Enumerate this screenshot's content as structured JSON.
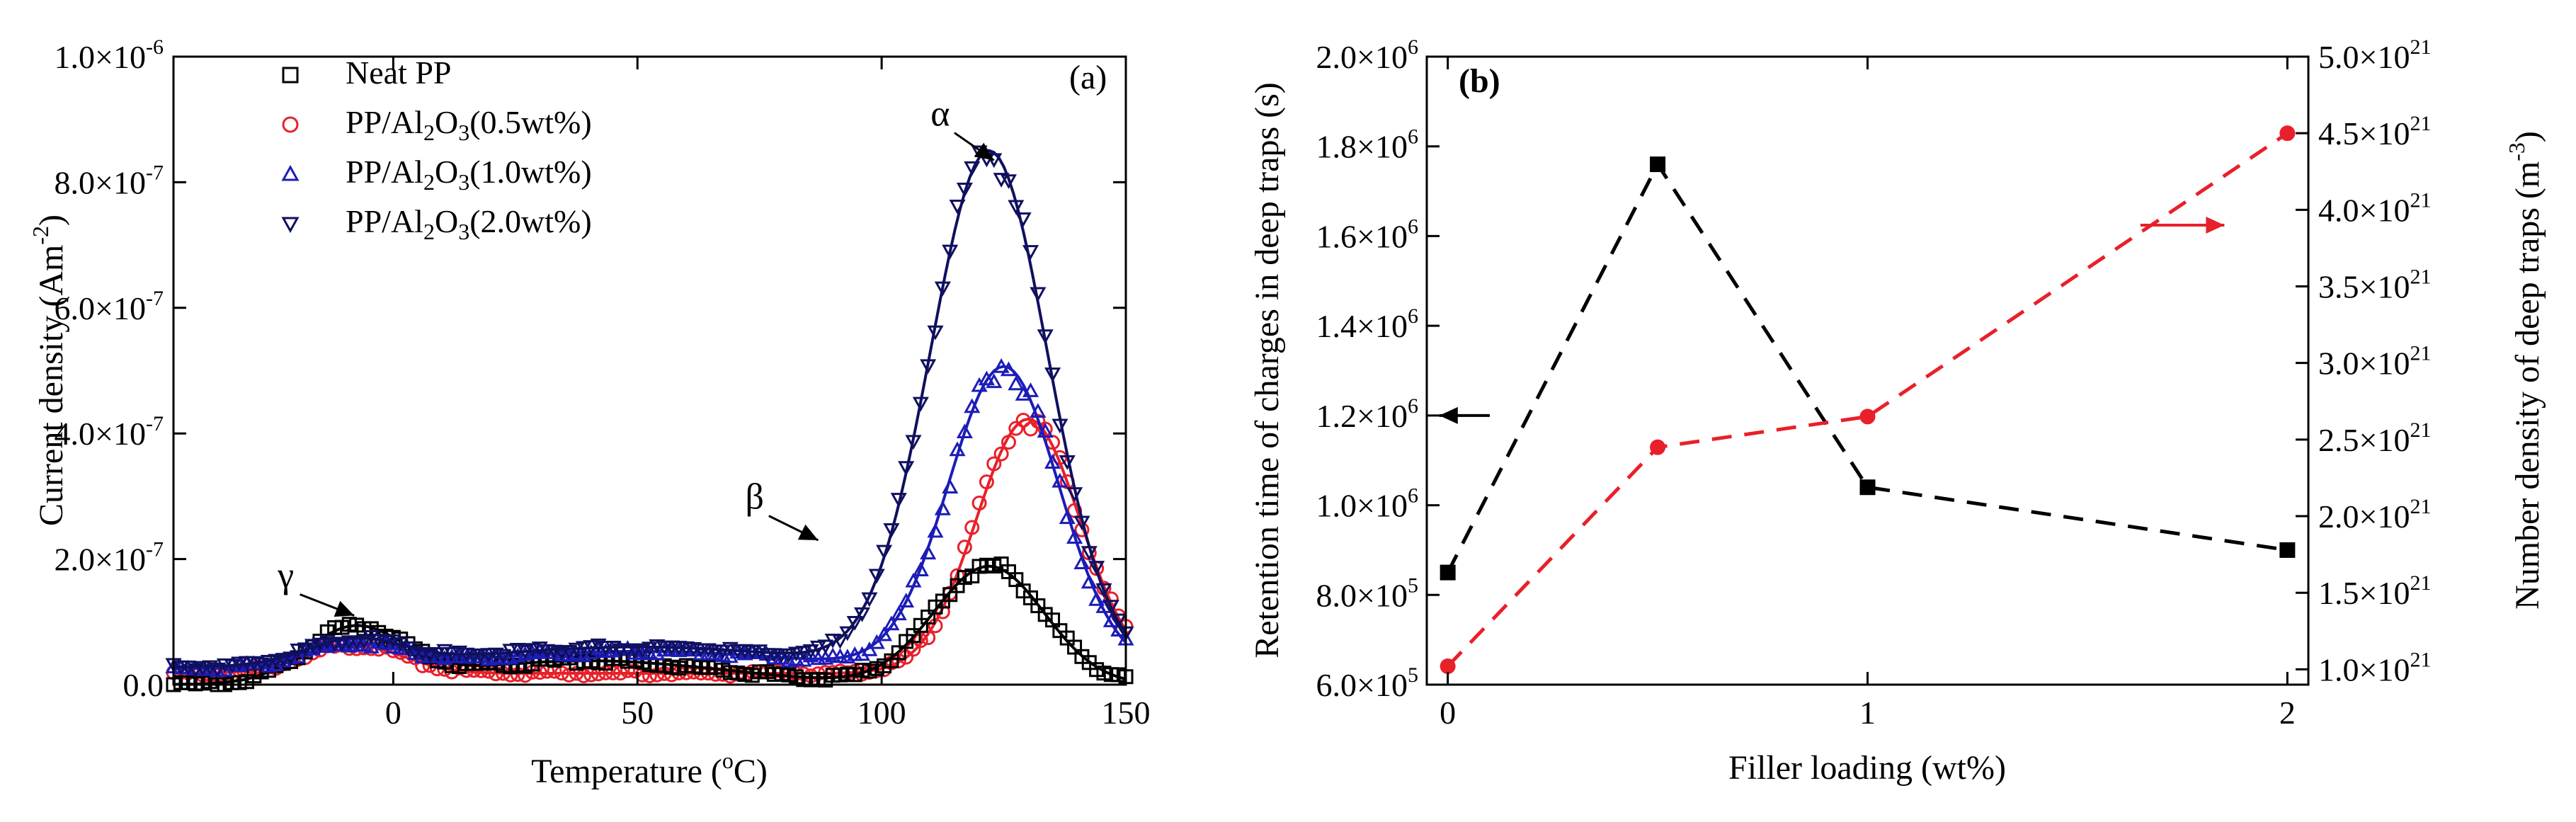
{
  "chart_data": [
    {
      "panel": "(a)",
      "type": "scatter",
      "xlabel": {
        "main": "Temperature (",
        "sup": "o",
        "tail": "C)"
      },
      "ylabel": {
        "main": "Current density (Am",
        "sup": "-2",
        "tail": ")"
      },
      "xlim": [
        -45,
        150
      ],
      "ylim": [
        0,
        1e-06
      ],
      "x_ticks": [
        {
          "v": 0,
          "t": "0"
        },
        {
          "v": 50,
          "t": "50"
        },
        {
          "v": 100,
          "t": "100"
        },
        {
          "v": 150,
          "t": "150"
        }
      ],
      "y_ticks": [
        {
          "v": 0,
          "m": "0.0",
          "e": ""
        },
        {
          "v": 2e-07,
          "m": "2.0×10",
          "e": "-7"
        },
        {
          "v": 4e-07,
          "m": "4.0×10",
          "e": "-7"
        },
        {
          "v": 6e-07,
          "m": "6.0×10",
          "e": "-7"
        },
        {
          "v": 8e-07,
          "m": "8.0×10",
          "e": "-7"
        },
        {
          "v": 1e-06,
          "m": "1.0×10",
          "e": "-6"
        }
      ],
      "series": [
        {
          "name": "Neat PP",
          "label_main": "Neat PP",
          "label_sub": "",
          "label_tail": "",
          "marker": "square",
          "color": "#000000",
          "peaks": [
            {
              "c": -8,
              "w": 14,
              "a": 8.5e-08
            },
            {
              "c": 40,
              "w": 40,
              "a": 3.8e-08
            },
            {
              "c": 122,
              "w": 16,
              "a": 1.88e-07
            }
          ],
          "baseline": 0
        },
        {
          "name": "PP/Al2O3(0.5wt%)",
          "label_main": "PP/Al",
          "label_sub": "2",
          "label_tail": "O",
          "label_sub2": "3",
          "label_end": "(0.5wt%)",
          "marker": "circle",
          "color": "#e8202a",
          "peaks": [
            {
              "c": -8,
              "w": 14,
              "a": 4.5e-08
            },
            {
              "c": 130,
              "w": 15,
              "a": 4.05e-07
            }
          ],
          "baseline": 1.8e-08
        },
        {
          "name": "PP/Al2O3(1.0wt%)",
          "label_main": "PP/Al",
          "label_sub": "2",
          "label_tail": "O",
          "label_sub2": "3",
          "label_end": "(1.0wt%)",
          "marker": "triangle-up",
          "color": "#1c1cb8",
          "peaks": [
            {
              "c": -8,
              "w": 14,
              "a": 3.5e-08
            },
            {
              "c": 50,
              "w": 45,
              "a": 2.8e-08
            },
            {
              "c": 125,
              "w": 16,
              "a": 4.8e-07
            }
          ],
          "baseline": 2.5e-08
        },
        {
          "name": "PP/Al2O3(2.0wt%)",
          "label_main": "PP/Al",
          "label_sub": "2",
          "label_tail": "O",
          "label_sub2": "3",
          "label_end": "(2.0wt%)",
          "marker": "triangle-down",
          "color": "#101060",
          "peaks": [
            {
              "c": -8,
              "w": 14,
              "a": 4e-08
            },
            {
              "c": 50,
              "w": 45,
              "a": 3.2e-08
            },
            {
              "c": 122,
              "w": 17,
              "a": 8.2e-07
            }
          ],
          "baseline": 2.8e-08
        }
      ],
      "annotations": [
        {
          "text": "α",
          "x": 112,
          "y": 8.9e-07,
          "arrow_to": [
            123,
            8.35e-07
          ]
        },
        {
          "text": "β",
          "x": 74,
          "y": 2.8e-07,
          "arrow_to": [
            87,
            2.3e-07
          ]
        },
        {
          "text": "γ",
          "x": -22,
          "y": 1.55e-07,
          "arrow_to": [
            -8,
            1.1e-07
          ]
        }
      ]
    },
    {
      "panel": "(b)",
      "type": "line",
      "xlabel": "Filler loading (wt%)",
      "ylabel_left": "Retention time of charges in deep traps (s)",
      "ylabel_right": {
        "main": "Number density of deep traps (m",
        "sup": "-3",
        "tail": ")"
      },
      "xlim": [
        -0.05,
        2.05
      ],
      "ylim_left": [
        600000.0,
        2000000.0
      ],
      "ylim_right": [
        9e+20,
        5e+21
      ],
      "x": [
        0,
        0.5,
        1,
        2
      ],
      "x_ticks": [
        {
          "v": 0,
          "t": "0"
        },
        {
          "v": 1,
          "t": "1"
        },
        {
          "v": 2,
          "t": "2"
        }
      ],
      "y_left_ticks": [
        {
          "v": 600000.0,
          "m": "6.0×10",
          "e": "5"
        },
        {
          "v": 800000.0,
          "m": "8.0×10",
          "e": "5"
        },
        {
          "v": 1000000.0,
          "m": "1.0×10",
          "e": "6"
        },
        {
          "v": 1200000.0,
          "m": "1.2×10",
          "e": "6"
        },
        {
          "v": 1400000.0,
          "m": "1.4×10",
          "e": "6"
        },
        {
          "v": 1600000.0,
          "m": "1.6×10",
          "e": "6"
        },
        {
          "v": 1800000.0,
          "m": "1.8×10",
          "e": "6"
        },
        {
          "v": 2000000.0,
          "m": "2.0×10",
          "e": "6"
        }
      ],
      "y_right_ticks": [
        {
          "v": 1e+21,
          "m": "1.0×10",
          "e": "21"
        },
        {
          "v": 1.5e+21,
          "m": "1.5×10",
          "e": "21"
        },
        {
          "v": 2e+21,
          "m": "2.0×10",
          "e": "21"
        },
        {
          "v": 2.5e+21,
          "m": "2.5×10",
          "e": "21"
        },
        {
          "v": 3e+21,
          "m": "3.0×10",
          "e": "21"
        },
        {
          "v": 3.5e+21,
          "m": "3.5×10",
          "e": "21"
        },
        {
          "v": 4e+21,
          "m": "4.0×10",
          "e": "21"
        },
        {
          "v": 4.5e+21,
          "m": "4.5×10",
          "e": "21"
        },
        {
          "v": 5e+21,
          "m": "5.0×10",
          "e": "21"
        }
      ],
      "series": [
        {
          "name": "Retention time",
          "axis": "left",
          "marker": "square",
          "color": "#000000",
          "dash": "dashed",
          "values": [
            850000.0,
            1760000.0,
            1040000.0,
            900000.0
          ]
        },
        {
          "name": "Number density",
          "axis": "right",
          "marker": "circle",
          "color": "#e8202a",
          "dash": "dashed",
          "values": [
            1.02e+21,
            2.45e+21,
            2.65e+21,
            4.5e+21
          ]
        }
      ],
      "arrows": [
        {
          "axis": "left",
          "from_x": 0.1,
          "to_x": -0.02,
          "y": 1200000.0,
          "color": "#000000"
        },
        {
          "axis": "right",
          "from_x": 1.65,
          "to_x": 1.85,
          "y": 3.9e+21,
          "color": "#e8202a"
        }
      ]
    }
  ]
}
